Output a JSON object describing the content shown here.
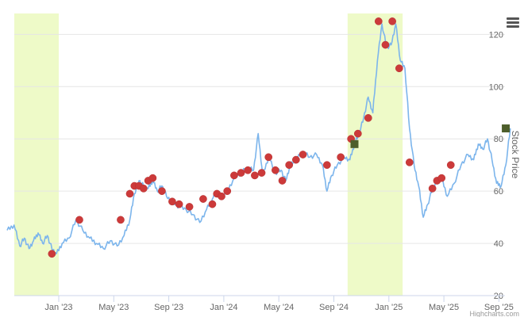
{
  "chart_data": {
    "type": "line",
    "ylabel": "Stock Price",
    "ylim": [
      20,
      128
    ],
    "y_axis_position": "right",
    "y_ticks": [
      20,
      40,
      60,
      80,
      100,
      120
    ],
    "x_ticks": [
      "Jan '23",
      "May '23",
      "Sep '23",
      "Jan '24",
      "May '24",
      "Sep '24",
      "Jan '25",
      "May '25",
      "Sep '25"
    ],
    "grid": true,
    "line_color": "#7cb5ec",
    "band_color": "#eefac8",
    "marker_color": "#cc3a3a",
    "square_marker_color": "#4d5e2b",
    "bands": [
      {
        "from": "Sep '22",
        "to": "Dec '22"
      },
      {
        "from": "Oct '24",
        "to": "Jan '25"
      }
    ],
    "series": [
      {
        "points": [
          [
            "Sep '22",
            45
          ],
          [
            "Sep '22",
            47
          ],
          [
            "Oct '22",
            39
          ],
          [
            "Oct '22",
            42
          ],
          [
            "Oct '22",
            38
          ],
          [
            "Nov '22",
            41
          ],
          [
            "Nov '22",
            44
          ],
          [
            "Nov '22",
            40
          ],
          [
            "Dec '22",
            43
          ],
          [
            "Dec '22",
            38
          ],
          [
            "Dec '22",
            36
          ],
          [
            "Jan '23",
            40
          ],
          [
            "Jan '23",
            42
          ],
          [
            "Feb '23",
            49
          ],
          [
            "Feb '23",
            45
          ],
          [
            "Mar '23",
            42
          ],
          [
            "Mar '23",
            40
          ],
          [
            "Apr '23",
            38
          ],
          [
            "Apr '23",
            41
          ],
          [
            "May '23",
            39
          ],
          [
            "May '23",
            43
          ],
          [
            "Jun '23",
            49
          ],
          [
            "Jun '23",
            59
          ],
          [
            "Jun '23",
            64
          ],
          [
            "Jul '23",
            62
          ],
          [
            "Jul '23",
            61
          ],
          [
            "Jul '23",
            64
          ],
          [
            "Aug '23",
            60
          ],
          [
            "Aug '23",
            62
          ],
          [
            "Aug '23",
            58
          ],
          [
            "Sep '23",
            56
          ],
          [
            "Sep '23",
            54
          ],
          [
            "Oct '23",
            53
          ],
          [
            "Oct '23",
            51
          ],
          [
            "Nov '23",
            48
          ],
          [
            "Nov '23",
            53
          ],
          [
            "Dec '23",
            57
          ],
          [
            "Dec '23",
            60
          ],
          [
            "Dec '23",
            58
          ],
          [
            "Jan '24",
            60
          ],
          [
            "Jan '24",
            65
          ],
          [
            "Feb '24",
            67
          ],
          [
            "Feb '24",
            69
          ],
          [
            "Mar '24",
            68
          ],
          [
            "Mar '24",
            82
          ],
          [
            "Mar '24",
            66
          ],
          [
            "Apr '24",
            73
          ],
          [
            "Apr '24",
            67
          ],
          [
            "May '24",
            68
          ],
          [
            "May '24",
            64
          ],
          [
            "May '24",
            70
          ],
          [
            "Jun '24",
            72
          ],
          [
            "Jun '24",
            75
          ],
          [
            "Jul '24",
            73
          ],
          [
            "Jul '24",
            74
          ],
          [
            "Aug '24",
            70
          ],
          [
            "Aug '24",
            60
          ],
          [
            "Aug '24",
            66
          ],
          [
            "Sep '24",
            70
          ],
          [
            "Sep '24",
            73
          ],
          [
            "Oct '24",
            72
          ],
          [
            "Oct '24",
            78
          ],
          [
            "Oct '24",
            82
          ],
          [
            "Nov '24",
            88
          ],
          [
            "Nov '24",
            96
          ],
          [
            "Nov '24",
            90
          ],
          [
            "Dec '24",
            110
          ],
          [
            "Dec '24",
            124
          ],
          [
            "Dec '24",
            115
          ],
          [
            "Jan '25",
            116
          ],
          [
            "Jan '25",
            124
          ],
          [
            "Jan '25",
            110
          ],
          [
            "Feb '25",
            107
          ],
          [
            "Feb '25",
            84
          ],
          [
            "Feb '25",
            70
          ],
          [
            "Mar '25",
            62
          ],
          [
            "Mar '25",
            50
          ],
          [
            "Mar '25",
            55
          ],
          [
            "Apr '25",
            61
          ],
          [
            "Apr '25",
            64
          ],
          [
            "Apr '25",
            65
          ],
          [
            "May '25",
            58
          ],
          [
            "May '25",
            63
          ],
          [
            "Jun '25",
            70
          ],
          [
            "Jun '25",
            74
          ],
          [
            "Jul '25",
            72
          ],
          [
            "Jul '25",
            78
          ],
          [
            "Jul '25",
            76
          ],
          [
            "Aug '25",
            80
          ],
          [
            "Aug '25",
            72
          ],
          [
            "Aug '25",
            63
          ],
          [
            "Sep '25",
            62
          ],
          [
            "Sep '25",
            70
          ],
          [
            "Sep '25",
            84
          ]
        ]
      }
    ],
    "markers": [
      [
        "Dec '22",
        36
      ],
      [
        "Feb '23",
        49
      ],
      [
        "May '23",
        49
      ],
      [
        "Jun '23",
        59
      ],
      [
        "Jun '23",
        62
      ],
      [
        "Jun '23",
        62
      ],
      [
        "Jul '23",
        61
      ],
      [
        "Jul '23",
        64
      ],
      [
        "Jul '23",
        65
      ],
      [
        "Aug '23",
        60
      ],
      [
        "Sep '23",
        56
      ],
      [
        "Sep '23",
        55
      ],
      [
        "Oct '23",
        54
      ],
      [
        "Nov '23",
        57
      ],
      [
        "Dec '23",
        55
      ],
      [
        "Dec '23",
        59
      ],
      [
        "Dec '23",
        58
      ],
      [
        "Jan '24",
        60
      ],
      [
        "Jan '24",
        66
      ],
      [
        "Feb '24",
        67
      ],
      [
        "Feb '24",
        68
      ],
      [
        "Mar '24",
        66
      ],
      [
        "Mar '24",
        67
      ],
      [
        "Apr '24",
        73
      ],
      [
        "Apr '24",
        68
      ],
      [
        "May '24",
        64
      ],
      [
        "May '24",
        70
      ],
      [
        "Jun '24",
        72
      ],
      [
        "Jun '24",
        74
      ],
      [
        "Aug '24",
        70
      ],
      [
        "Sep '24",
        73
      ],
      [
        "Oct '24",
        80
      ],
      [
        "Oct '24",
        82
      ],
      [
        "Nov '24",
        88
      ],
      [
        "Dec '24",
        125
      ],
      [
        "Dec '24",
        116
      ],
      [
        "Jan '25",
        125
      ],
      [
        "Jan '25",
        107
      ],
      [
        "Feb '25",
        71
      ],
      [
        "Apr '25",
        61
      ],
      [
        "Apr '25",
        64
      ],
      [
        "Apr '25",
        65
      ],
      [
        "May '25",
        70
      ]
    ],
    "square_markers": [
      [
        "Oct '24",
        78
      ],
      [
        "Sep '25",
        84
      ]
    ],
    "credits": "Highcharts.com"
  }
}
